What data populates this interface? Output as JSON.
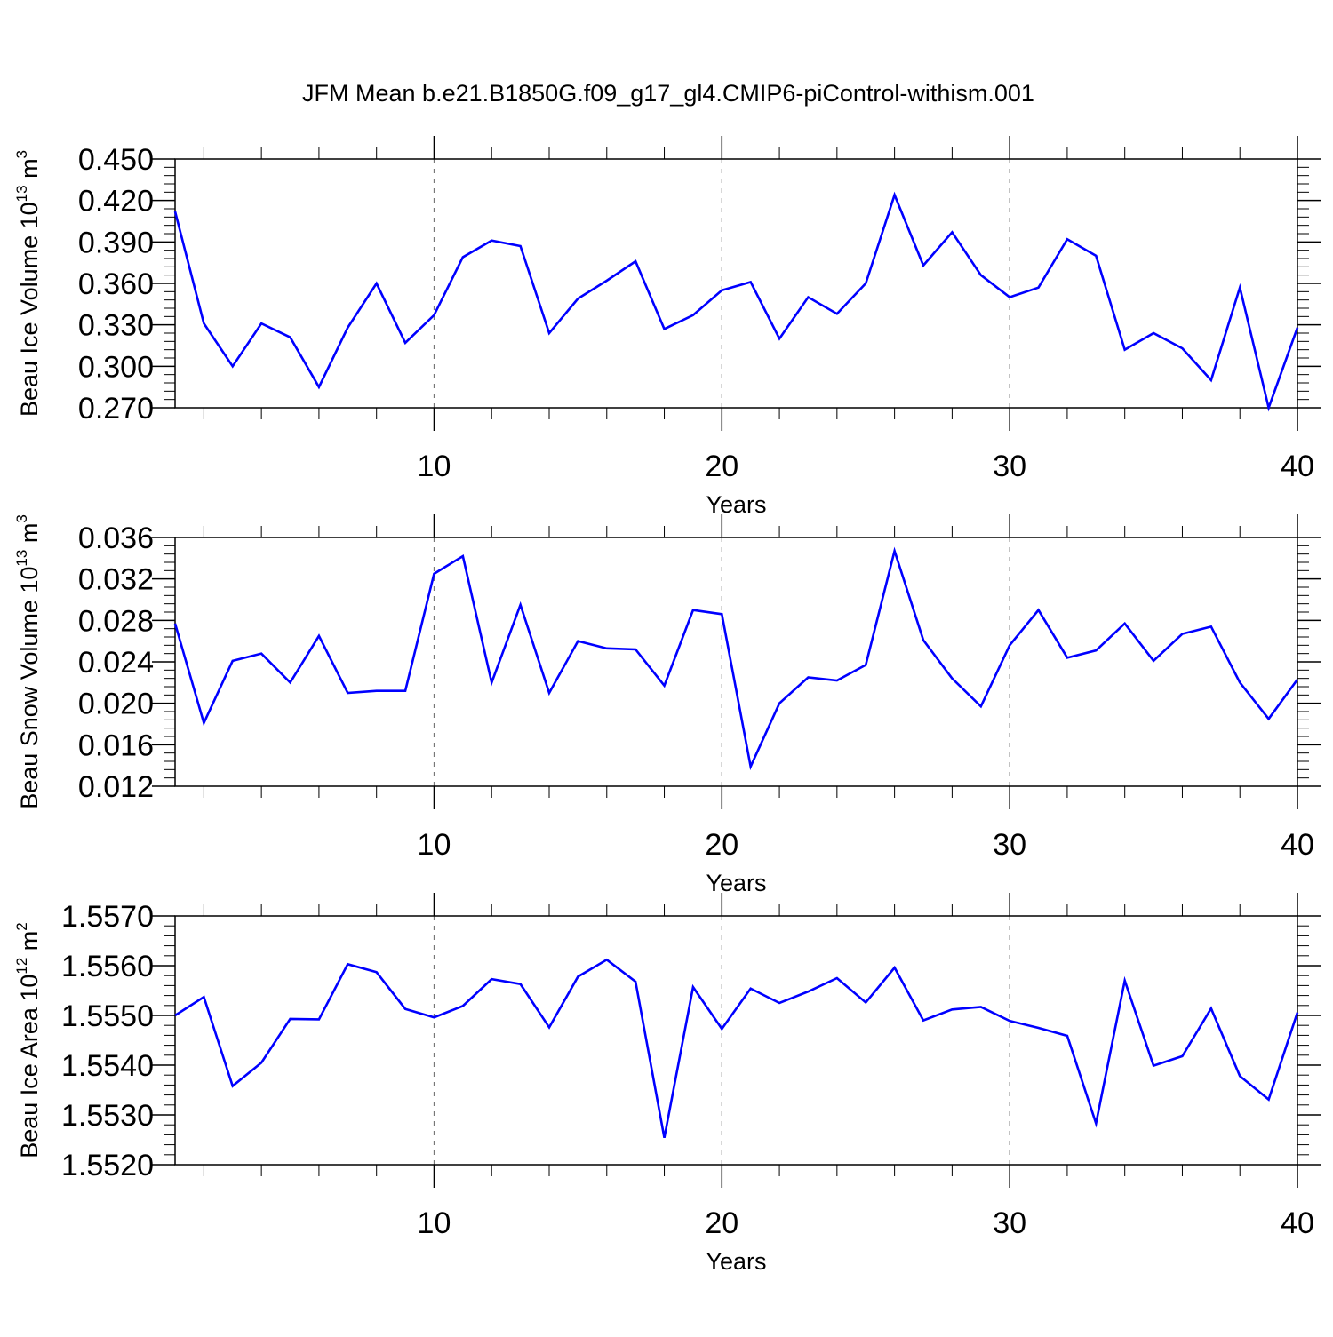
{
  "title": "JFM Mean b.e21.B1850G.f09_g17_gl4.CMIP6-piControl-withism.001",
  "colors": {
    "line": "#0000ff",
    "axis": "#000000",
    "grid": "#777777"
  },
  "chart_data": [
    {
      "type": "line",
      "ylabel_main": "Beau Ice Volume 10",
      "ylabel_exp": "13",
      "ylabel_unit": " m",
      "ylabel_unit_exp": "3",
      "xlabel": "Years",
      "xlim": [
        1,
        40
      ],
      "ylim": [
        0.27,
        0.45
      ],
      "yticks": [
        "0.270",
        "0.300",
        "0.330",
        "0.360",
        "0.390",
        "0.420",
        "0.450"
      ],
      "xticks": [
        "10",
        "20",
        "30",
        "40"
      ],
      "grid_x": [
        10,
        20,
        30
      ],
      "series": [
        {
          "name": "Beau Ice Volume",
          "x": [
            1,
            2,
            3,
            4,
            5,
            6,
            7,
            8,
            9,
            10,
            11,
            12,
            13,
            14,
            15,
            16,
            17,
            18,
            19,
            20,
            21,
            22,
            23,
            24,
            25,
            26,
            27,
            28,
            29,
            30,
            31,
            32,
            33,
            34,
            35,
            36,
            37,
            38,
            39,
            40
          ],
          "values": [
            0.412,
            0.331,
            0.3,
            0.331,
            0.321,
            0.285,
            0.328,
            0.36,
            0.317,
            0.337,
            0.379,
            0.391,
            0.387,
            0.324,
            0.349,
            0.362,
            0.376,
            0.327,
            0.337,
            0.355,
            0.361,
            0.32,
            0.35,
            0.338,
            0.36,
            0.424,
            0.373,
            0.397,
            0.366,
            0.35,
            0.357,
            0.392,
            0.38,
            0.312,
            0.324,
            0.313,
            0.29,
            0.357,
            0.27,
            0.328
          ]
        }
      ]
    },
    {
      "type": "line",
      "ylabel_main": "Beau Snow Volume 10",
      "ylabel_exp": "13",
      "ylabel_unit": " m",
      "ylabel_unit_exp": "3",
      "xlabel": "Years",
      "xlim": [
        1,
        40
      ],
      "ylim": [
        0.012,
        0.036
      ],
      "yticks": [
        "0.012",
        "0.016",
        "0.020",
        "0.024",
        "0.028",
        "0.032",
        "0.036"
      ],
      "xticks": [
        "10",
        "20",
        "30",
        "40"
      ],
      "grid_x": [
        10,
        20,
        30
      ],
      "series": [
        {
          "name": "Beau Snow Volume",
          "x": [
            1,
            2,
            3,
            4,
            5,
            6,
            7,
            8,
            9,
            10,
            11,
            12,
            13,
            14,
            15,
            16,
            17,
            18,
            19,
            20,
            21,
            22,
            23,
            24,
            25,
            26,
            27,
            28,
            29,
            30,
            31,
            32,
            33,
            34,
            35,
            36,
            37,
            38,
            39,
            40
          ],
          "values": [
            0.0277,
            0.0181,
            0.0241,
            0.0248,
            0.022,
            0.0265,
            0.021,
            0.0212,
            0.0212,
            0.0325,
            0.0342,
            0.022,
            0.0295,
            0.021,
            0.026,
            0.0253,
            0.0252,
            0.0217,
            0.029,
            0.0286,
            0.0139,
            0.02,
            0.0225,
            0.0222,
            0.0237,
            0.0347,
            0.0261,
            0.0224,
            0.0197,
            0.0256,
            0.029,
            0.0244,
            0.0251,
            0.0277,
            0.0241,
            0.0267,
            0.0274,
            0.022,
            0.0185,
            0.0223
          ]
        }
      ]
    },
    {
      "type": "line",
      "ylabel_main": "Beau Ice Area 10",
      "ylabel_exp": "12",
      "ylabel_unit": " m",
      "ylabel_unit_exp": "2",
      "xlabel": "Years",
      "xlim": [
        1,
        40
      ],
      "ylim": [
        1.552,
        1.557
      ],
      "yticks": [
        "1.5520",
        "1.5530",
        "1.5540",
        "1.5550",
        "1.5560",
        "1.5570"
      ],
      "xticks": [
        "10",
        "20",
        "30",
        "40"
      ],
      "grid_x": [
        10,
        20,
        30
      ],
      "series": [
        {
          "name": "Beau Ice Area",
          "x": [
            1,
            2,
            3,
            4,
            5,
            6,
            7,
            8,
            9,
            10,
            11,
            12,
            13,
            14,
            15,
            16,
            17,
            18,
            19,
            20,
            21,
            22,
            23,
            24,
            25,
            26,
            27,
            28,
            29,
            30,
            31,
            32,
            33,
            34,
            35,
            36,
            37,
            38,
            39,
            40
          ],
          "values": [
            1.555,
            1.55537,
            1.55358,
            1.55405,
            1.55493,
            1.55492,
            1.55603,
            1.55587,
            1.55513,
            1.55496,
            1.55519,
            1.55573,
            1.55563,
            1.55476,
            1.55578,
            1.55612,
            1.55568,
            1.55254,
            1.55557,
            1.55473,
            1.55554,
            1.55525,
            1.55548,
            1.55575,
            1.55526,
            1.55596,
            1.5549,
            1.55512,
            1.55517,
            1.55489,
            1.55475,
            1.55459,
            1.55283,
            1.5557,
            1.55399,
            1.55418,
            1.55514,
            1.55378,
            1.55331,
            1.55506
          ]
        }
      ]
    }
  ]
}
